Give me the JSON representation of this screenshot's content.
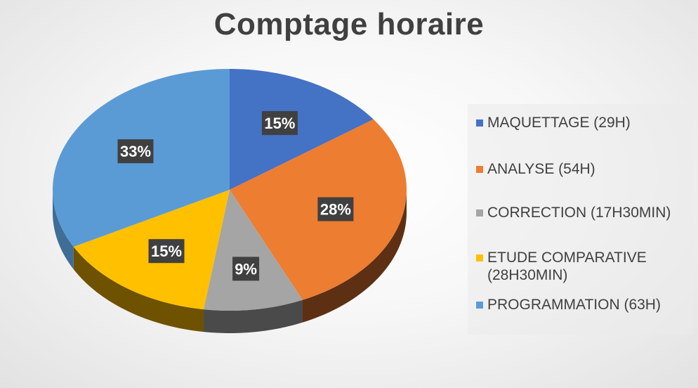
{
  "chart_data": {
    "type": "pie",
    "title": "Comptage horaire",
    "categories": [
      "MAQUETTAGE (29H)",
      "ANALYSE (54H)",
      "CORRECTION (17H30MIN)",
      "ETUDE COMPARATIVE (28H30MIN)",
      "PROGRAMMATION (63H)"
    ],
    "values": [
      29,
      54,
      17.5,
      28.5,
      63
    ],
    "data_labels": [
      "15%",
      "28%",
      "9%",
      "15%",
      "33%"
    ],
    "colors": [
      "#4472C4",
      "#ED7D31",
      "#A5A5A5",
      "#FFC000",
      "#5B9BD5"
    ],
    "side_colors": [
      "#2F4F8A",
      "#5E3013",
      "#4A4A4A",
      "#6E5200",
      "#3F6D96"
    ],
    "legend_position": "right",
    "style": "3d-pie"
  }
}
